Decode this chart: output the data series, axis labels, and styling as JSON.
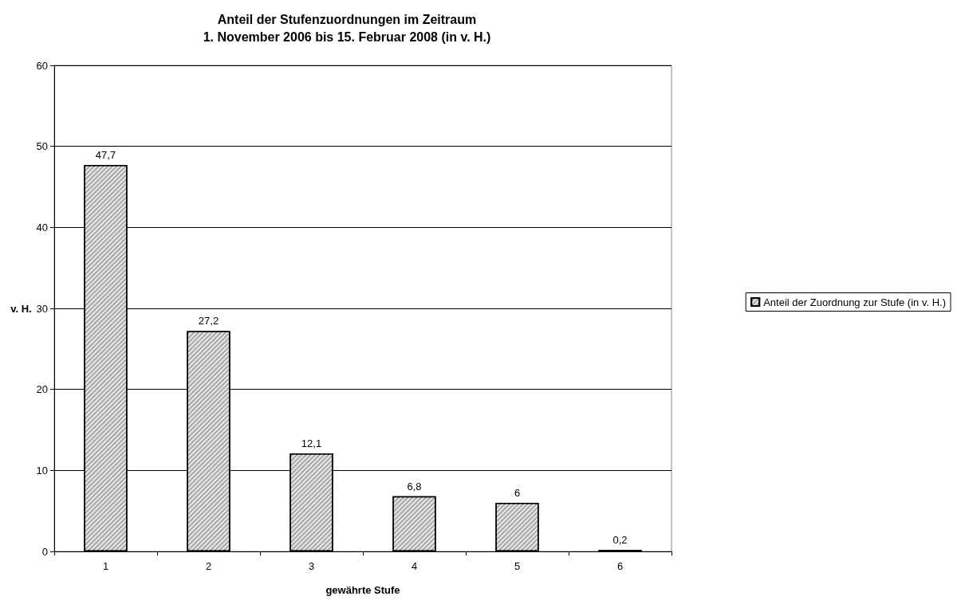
{
  "chart_data": {
    "type": "bar",
    "title": "Anteil der Stufenzuordnungen im Zeitraum\n1. November 2006 bis 15. Februar 2008 (in v. H.)",
    "xlabel": "gewährte Stufe",
    "ylabel": "v. H.",
    "categories": [
      "1",
      "2",
      "3",
      "4",
      "5",
      "6"
    ],
    "series": [
      {
        "name": "Anteil der Zuordnung zur Stufe (in v. H.)",
        "color": "#a6a6a6",
        "values": [
          47.7,
          27.2,
          12.1,
          6.8,
          6,
          0.2
        ],
        "value_labels": [
          "47,7",
          "27,2",
          "12,1",
          "6,8",
          "6",
          "0,2"
        ]
      }
    ],
    "ylim": [
      0,
      60
    ],
    "yticks": [
      0,
      10,
      20,
      30,
      40,
      50,
      60
    ],
    "grid": "y",
    "legend": "right"
  }
}
